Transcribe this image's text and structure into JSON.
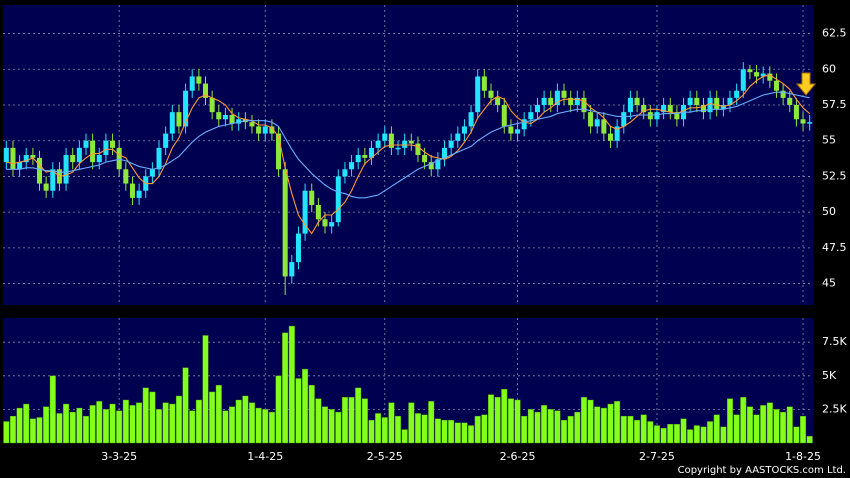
{
  "chart_data": [
    {
      "type": "candlestick",
      "open": [
        53.5,
        54.5,
        53,
        53.5,
        54,
        53.8,
        52,
        51.5,
        53,
        52,
        54,
        53.5,
        54.5,
        55,
        53.5,
        54,
        55,
        54.5,
        53,
        52,
        51,
        51.5,
        52.5,
        53,
        54.5,
        55.5,
        57,
        56,
        58.5,
        59.5,
        59,
        58,
        57,
        56.5,
        56.8,
        56.2,
        56.5,
        56.3,
        56,
        55.5,
        56,
        55.5,
        53,
        45.5,
        46.5,
        48.5,
        51.5,
        50.5,
        49.5,
        49,
        49.3,
        52.5,
        53,
        53.5,
        54,
        53.8,
        54.5,
        55,
        55.5,
        54.5,
        54.5,
        55,
        54.8,
        54,
        53.5,
        53,
        53.7,
        54.5,
        55,
        55.5,
        56,
        57,
        59.5,
        58.5,
        58,
        57.5,
        56,
        55.5,
        55.8,
        56.5,
        57,
        57.5,
        58,
        57.5,
        58.5,
        58,
        57.5,
        58,
        57,
        56,
        56.5,
        55.5,
        55,
        56,
        57,
        58,
        57.5,
        57,
        56.5,
        57,
        57.5,
        57,
        56.5,
        57.5,
        58,
        57.5,
        57,
        58,
        57.2,
        57.5,
        58,
        58.5,
        60,
        59.8,
        59.5,
        59.7,
        59.2,
        58.5,
        58,
        57.5,
        56.5,
        56.2
      ],
      "high": [
        55,
        55,
        54,
        54.5,
        54.5,
        54.3,
        52.5,
        53.5,
        53.5,
        54.5,
        54.5,
        55,
        55.5,
        55.5,
        54.5,
        55.5,
        55.5,
        55,
        53.5,
        52.5,
        52,
        53,
        53.5,
        55,
        56,
        57.5,
        57.5,
        59,
        60,
        60,
        59.5,
        58.5,
        57.5,
        57.3,
        57.3,
        57,
        57,
        56.8,
        56.5,
        56.5,
        56.5,
        56,
        53.5,
        47,
        49,
        52,
        52,
        51,
        50,
        49.8,
        53,
        53.5,
        54,
        54.5,
        54.5,
        55,
        55.5,
        56,
        56,
        55,
        55.5,
        55.5,
        55.3,
        54.5,
        54,
        54.2,
        55,
        55.5,
        56,
        56.5,
        57.5,
        60,
        60,
        59,
        58.5,
        58,
        56.5,
        56.3,
        57,
        57.5,
        58,
        58.5,
        58.5,
        59,
        59,
        58.5,
        58.5,
        58.5,
        57.5,
        57,
        57,
        56,
        56.5,
        57.5,
        58.5,
        58.5,
        58,
        57.5,
        57.5,
        58,
        58,
        57.5,
        58,
        58.5,
        58.5,
        58,
        58.5,
        58.5,
        58,
        58.5,
        59,
        60.5,
        60.3,
        60.3,
        60.2,
        60.2,
        59.7,
        59,
        58.5,
        58,
        57,
        56.8
      ],
      "low": [
        53,
        52.5,
        52.5,
        53,
        53.3,
        51.5,
        51,
        51,
        51.5,
        51.5,
        53,
        53,
        54,
        53,
        53,
        53.5,
        54,
        52.5,
        51.5,
        50.5,
        50.5,
        51,
        52,
        52.5,
        54,
        55,
        55.5,
        55.5,
        58,
        58.5,
        57.5,
        56.5,
        56,
        56,
        55.7,
        55.7,
        55.8,
        55.5,
        55,
        55,
        55,
        52.5,
        44.2,
        45,
        46,
        48,
        50,
        49,
        48.5,
        48.5,
        49,
        52,
        52.5,
        53,
        53.3,
        53.3,
        54,
        54.5,
        54,
        54,
        54,
        54.3,
        53.5,
        53,
        52.5,
        52.5,
        53.2,
        54,
        54.5,
        55,
        55.5,
        56.5,
        58,
        57.5,
        57,
        55.5,
        55,
        55,
        55.3,
        56,
        56.5,
        57,
        57,
        57,
        57.5,
        57,
        57,
        56.5,
        55.5,
        55.5,
        55,
        54.5,
        54.5,
        55.5,
        56.5,
        57,
        56.5,
        56,
        56,
        56.5,
        56.5,
        56,
        56,
        57,
        57,
        56.5,
        56.5,
        56.7,
        56.7,
        57,
        57.5,
        58,
        59.3,
        59,
        59,
        58.7,
        58,
        57.5,
        57,
        56,
        55.7,
        55.7
      ],
      "close": [
        54.5,
        53,
        53.5,
        54,
        53.8,
        52,
        51.5,
        53,
        52,
        54,
        53.5,
        54.5,
        55,
        53.5,
        54,
        55,
        54.5,
        53,
        52,
        51,
        51.5,
        52.5,
        53,
        54.5,
        55.5,
        57,
        56,
        58.5,
        59.5,
        59,
        58,
        57,
        56.5,
        56.8,
        56.2,
        56.5,
        56.3,
        56,
        55.5,
        56,
        55.5,
        53,
        45.5,
        46.5,
        48.5,
        51.5,
        50.5,
        49.5,
        49,
        49.3,
        52.5,
        53,
        53.5,
        54,
        53.8,
        54.5,
        55,
        55.5,
        54.5,
        54.5,
        55,
        54.8,
        54,
        53.5,
        53,
        53.7,
        54.5,
        55,
        55.5,
        56,
        57,
        59.5,
        58.5,
        58,
        57.5,
        56,
        55.5,
        55.8,
        56.5,
        57,
        57.5,
        58,
        57.5,
        58.5,
        58,
        57.5,
        58,
        57,
        56,
        56.5,
        55.5,
        55,
        56,
        57,
        58,
        57.5,
        57,
        56.5,
        57,
        57.5,
        57,
        56.5,
        57.5,
        58,
        57.5,
        57,
        58,
        57.2,
        57.5,
        58,
        58.5,
        60,
        59.8,
        59.5,
        59.7,
        59.2,
        58.5,
        58,
        57.5,
        56.5,
        56.2,
        56.3
      ],
      "up_color": "#22e4ff",
      "down_color": "#8ee83a",
      "series": [
        {
          "color": "#ff9a30",
          "values": [
            53.5,
            53.4,
            53.5,
            53.6,
            53.8,
            53.3,
            52.8,
            52.9,
            52.5,
            52.6,
            52.8,
            53.4,
            53.8,
            54.1,
            54.1,
            54.4,
            54.4,
            54,
            53.8,
            53.1,
            52.4,
            52,
            52,
            52.5,
            53.4,
            54.5,
            55.2,
            56.3,
            57.3,
            58,
            58.2,
            58,
            57.8,
            57.5,
            56.9,
            56.6,
            56.5,
            56.4,
            56.1,
            56.1,
            55.9,
            55.3,
            53.1,
            51.3,
            49.8,
            49.1,
            48.5,
            49.3,
            49.8,
            49.8,
            50.2,
            50.7,
            51.5,
            52.5,
            53.4,
            53.8,
            54.2,
            54.6,
            54.7,
            54.7,
            54.7,
            54.7,
            54.6,
            54.2,
            53.9,
            53.8,
            53.7,
            53.9,
            54.3,
            54.9,
            55.6,
            56.6,
            57.2,
            57.8,
            58.1,
            57.9,
            57.1,
            56.6,
            56.3,
            56.2,
            56.5,
            57,
            57.3,
            57.7,
            57.9,
            57.9,
            57.9,
            57.8,
            57.3,
            57,
            56.6,
            56,
            55.8,
            56,
            56.3,
            56.7,
            57.1,
            57.2,
            57.2,
            57.1,
            57,
            56.9,
            57.1,
            57.3,
            57.3,
            57.4,
            57.6,
            57.5,
            57.4,
            57.5,
            57.8,
            58.2,
            58.8,
            59.2,
            59.5,
            59.6,
            59.3,
            59,
            58.6,
            57.9,
            57.3,
            56.9
          ]
        },
        {
          "color": "#6aaeff",
          "values": [
            53,
            53,
            53,
            53.1,
            53.1,
            53,
            52.9,
            52.9,
            52.8,
            52.8,
            52.9,
            53,
            53.1,
            53.2,
            53.3,
            53.5,
            53.6,
            53.7,
            53.6,
            53.4,
            53.2,
            53.1,
            53,
            53.1,
            53.3,
            53.6,
            53.9,
            54.4,
            54.9,
            55.3,
            55.6,
            55.8,
            56,
            56.1,
            56.2,
            56.3,
            56.4,
            56.4,
            56.4,
            56.4,
            56.3,
            56,
            55.2,
            54.4,
            53.7,
            53.2,
            52.7,
            52.3,
            51.9,
            51.6,
            51.4,
            51.3,
            51.1,
            51,
            51,
            51.1,
            51.2,
            51.5,
            51.8,
            52.1,
            52.4,
            52.7,
            53,
            53.2,
            53.4,
            53.6,
            53.8,
            54,
            54.2,
            54.4,
            54.6,
            55,
            55.3,
            55.6,
            55.8,
            56,
            56.1,
            56.2,
            56.3,
            56.4,
            56.5,
            56.6,
            56.7,
            56.9,
            57,
            57.1,
            57.2,
            57.2,
            57.1,
            57,
            56.9,
            56.8,
            56.7,
            56.7,
            56.7,
            56.8,
            56.8,
            56.8,
            56.8,
            56.9,
            56.9,
            56.9,
            57,
            57,
            57.1,
            57.1,
            57.2,
            57.2,
            57.2,
            57.3,
            57.4,
            57.6,
            57.8,
            58,
            58.2,
            58.3,
            58.4,
            58.4,
            58.3,
            58.2,
            58.1,
            58
          ]
        }
      ],
      "ylim": [
        43.5,
        64.5
      ],
      "yticks": [
        45,
        47.5,
        50,
        52.5,
        55,
        57.5,
        60,
        62.5
      ],
      "grid": true
    },
    {
      "type": "bar",
      "categories": [
        null,
        null,
        null,
        null,
        null,
        null,
        null,
        null,
        null,
        null,
        null,
        null,
        null,
        null,
        null,
        null,
        null,
        "3-3-25",
        null,
        null,
        null,
        null,
        null,
        null,
        null,
        null,
        null,
        null,
        null,
        null,
        null,
        null,
        null,
        null,
        null,
        null,
        null,
        null,
        null,
        "1-4-25",
        null,
        null,
        null,
        null,
        null,
        null,
        null,
        null,
        null,
        null,
        null,
        null,
        null,
        null,
        null,
        null,
        null,
        "2-5-25",
        null,
        null,
        null,
        null,
        null,
        null,
        null,
        null,
        null,
        null,
        null,
        null,
        null,
        null,
        null,
        null,
        null,
        null,
        null,
        "2-6-25",
        null,
        null,
        null,
        null,
        null,
        null,
        null,
        null,
        null,
        null,
        null,
        null,
        null,
        null,
        null,
        null,
        null,
        null,
        null,
        null,
        "2-7-25",
        null,
        null,
        null,
        null,
        null,
        null,
        null,
        null,
        null,
        null,
        null,
        null,
        null,
        null,
        null,
        null,
        null,
        null,
        null,
        null,
        null,
        "1-8-25",
        null
      ],
      "values": [
        1600,
        2000,
        2600,
        2900,
        1800,
        1900,
        2700,
        5000,
        2200,
        2900,
        2300,
        2600,
        2000,
        2800,
        3100,
        2500,
        2900,
        2400,
        3200,
        2800,
        3000,
        4100,
        3800,
        2500,
        3000,
        2900,
        3500,
        5600,
        2400,
        3200,
        8000,
        3800,
        4300,
        2400,
        2700,
        3200,
        3500,
        3000,
        2600,
        2500,
        2300,
        5000,
        8200,
        8700,
        4800,
        5500,
        4300,
        3300,
        2700,
        2500,
        2300,
        3400,
        3400,
        4100,
        3300,
        1700,
        2200,
        1900,
        3000,
        2000,
        1000,
        3000,
        2200,
        2100,
        3100,
        1800,
        1700,
        1700,
        1500,
        1500,
        1300,
        2000,
        2100,
        3600,
        3400,
        4000,
        3300,
        3200,
        2000,
        2500,
        2300,
        2800,
        2500,
        2400,
        1700,
        2000,
        2300,
        3400,
        3200,
        2700,
        2600,
        2900,
        3100,
        2000,
        2000,
        1700,
        2100,
        1600,
        1300,
        1100,
        1400,
        1400,
        1800,
        1000,
        1300,
        1200,
        1600,
        2100,
        1200,
        3300,
        2100,
        3400,
        2700,
        2100,
        2800,
        3000,
        2500,
        2300,
        2700,
        1200,
        2000,
        500
      ],
      "color": "#84ff1c",
      "ylim": [
        0,
        9300
      ],
      "yticks": [
        {
          "value": 2500,
          "label": "2.5K"
        },
        {
          "value": 5000,
          "label": "5K"
        },
        {
          "value": 7500,
          "label": "7.5K"
        }
      ],
      "grid": true
    }
  ],
  "copyright": "Copyright by AASTOCKS.com Ltd."
}
